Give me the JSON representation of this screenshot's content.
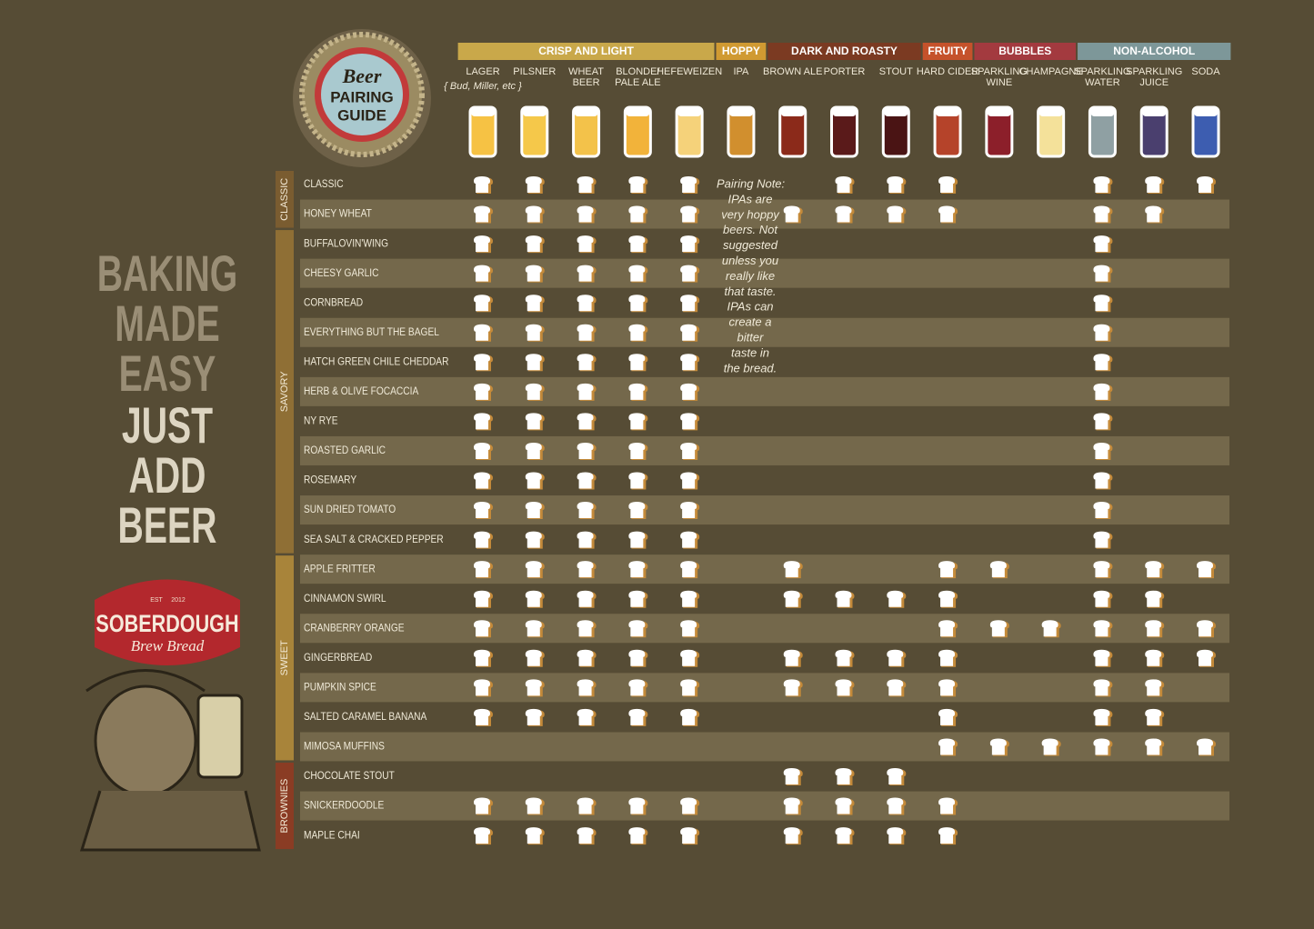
{
  "badge": {
    "top": "Beer",
    "middle": "PAIRING",
    "bottom": "GUIDE"
  },
  "slogan": [
    "BAKING",
    "MADE",
    "EASY",
    "JUST",
    "ADD",
    "BEER"
  ],
  "logo": {
    "est": "EST",
    "year": "2012",
    "name": "SOBERDOUGH",
    "tagline": "Brew Bread"
  },
  "pairing_note": {
    "title": "Pairing Note:",
    "lines": [
      "IPAs are",
      "very hoppy",
      "beers. Not",
      "suggested",
      "unless you",
      "really like",
      "that taste.",
      "IPAs can",
      "create a",
      "bitter",
      "taste in",
      "the bread."
    ]
  },
  "groups": [
    {
      "label": "CRISP AND LIGHT",
      "color": "#c9a84a",
      "columns": [
        {
          "label": [
            "LAGER"
          ],
          "sub": "{ Bud, Miller, etc }",
          "glass": "#f6c244"
        },
        {
          "label": [
            "PILSNER"
          ],
          "glass": "#f5c84a"
        },
        {
          "label": [
            "WHEAT",
            "BEER"
          ],
          "glass": "#f3c24a"
        },
        {
          "label": [
            "BLONDE/",
            "PALE ALE"
          ],
          "glass": "#f2b33a"
        },
        {
          "label": [
            "HEFEWEIZEN"
          ],
          "glass": "#f5d27a"
        }
      ]
    },
    {
      "label": "HOPPY",
      "color": "#d09a32",
      "columns": [
        {
          "label": [
            "IPA"
          ],
          "glass": "#d18f2e"
        }
      ]
    },
    {
      "label": "DARK AND ROASTY",
      "color": "#7b3a22",
      "columns": [
        {
          "label": [
            "BROWN ALE"
          ],
          "glass": "#8b2a1a"
        },
        {
          "label": [
            "PORTER"
          ],
          "glass": "#5a1a1a"
        },
        {
          "label": [
            "STOUT"
          ],
          "glass": "#4a1414"
        }
      ]
    },
    {
      "label": "FRUITY",
      "color": "#c5522b",
      "columns": [
        {
          "label": [
            "HARD CIDER"
          ],
          "glass": "#b5432a"
        }
      ]
    },
    {
      "label": "BUBBLES",
      "color": "#a33a3f",
      "columns": [
        {
          "label": [
            "SPARKLING",
            "WINE"
          ],
          "glass": "#8c1f2a"
        },
        {
          "label": [
            "CHAMPAGNE"
          ],
          "glass": "#f4e19a"
        }
      ]
    },
    {
      "label": "NON-ALCOHOL",
      "color": "#7d9799",
      "columns": [
        {
          "label": [
            "SPARKLING",
            "WATER"
          ],
          "glass": "#8fa0a3"
        },
        {
          "label": [
            "SPARKLING",
            "JUICE"
          ],
          "glass": "#4a3f6e"
        },
        {
          "label": [
            "SODA"
          ],
          "glass": "#3d5db0"
        }
      ]
    }
  ],
  "sections": [
    {
      "label": "CLASSIC",
      "color": "#7a5c30",
      "rows": [
        {
          "label": "CLASSIC",
          "pairs": [
            true,
            true,
            true,
            true,
            true,
            false,
            false,
            true,
            true,
            true,
            false,
            false,
            true,
            true,
            true
          ]
        },
        {
          "label": "HONEY WHEAT",
          "pairs": [
            true,
            true,
            true,
            true,
            true,
            false,
            true,
            true,
            true,
            true,
            false,
            false,
            true,
            true,
            false
          ]
        }
      ]
    },
    {
      "label": "SAVORY",
      "color": "#8f6f35",
      "rows": [
        {
          "label": "BUFFALOVIN'WING",
          "pairs": [
            true,
            true,
            true,
            true,
            true,
            false,
            false,
            false,
            false,
            false,
            false,
            false,
            true,
            false,
            false
          ]
        },
        {
          "label": "CHEESY GARLIC",
          "pairs": [
            true,
            true,
            true,
            true,
            true,
            false,
            false,
            false,
            false,
            false,
            false,
            false,
            true,
            false,
            false
          ]
        },
        {
          "label": "CORNBREAD",
          "pairs": [
            true,
            true,
            true,
            true,
            true,
            false,
            false,
            false,
            false,
            false,
            false,
            false,
            true,
            false,
            false
          ]
        },
        {
          "label": "EVERYTHING BUT THE BAGEL",
          "pairs": [
            true,
            true,
            true,
            true,
            true,
            false,
            false,
            false,
            false,
            false,
            false,
            false,
            true,
            false,
            false
          ]
        },
        {
          "label": "HATCH GREEN CHILE CHEDDAR",
          "pairs": [
            true,
            true,
            true,
            true,
            true,
            false,
            false,
            false,
            false,
            false,
            false,
            false,
            true,
            false,
            false
          ]
        },
        {
          "label": "HERB & OLIVE FOCACCIA",
          "pairs": [
            true,
            true,
            true,
            true,
            true,
            false,
            false,
            false,
            false,
            false,
            false,
            false,
            true,
            false,
            false
          ]
        },
        {
          "label": "NY RYE",
          "pairs": [
            true,
            true,
            true,
            true,
            true,
            false,
            false,
            false,
            false,
            false,
            false,
            false,
            true,
            false,
            false
          ]
        },
        {
          "label": "ROASTED GARLIC",
          "pairs": [
            true,
            true,
            true,
            true,
            true,
            false,
            false,
            false,
            false,
            false,
            false,
            false,
            true,
            false,
            false
          ]
        },
        {
          "label": "ROSEMARY",
          "pairs": [
            true,
            true,
            true,
            true,
            true,
            false,
            false,
            false,
            false,
            false,
            false,
            false,
            true,
            false,
            false
          ]
        },
        {
          "label": "SUN DRIED TOMATO",
          "pairs": [
            true,
            true,
            true,
            true,
            true,
            false,
            false,
            false,
            false,
            false,
            false,
            false,
            true,
            false,
            false
          ]
        },
        {
          "label": "SEA SALT & CRACKED PEPPER",
          "pairs": [
            true,
            true,
            true,
            true,
            true,
            false,
            false,
            false,
            false,
            false,
            false,
            false,
            true,
            false,
            false
          ]
        }
      ]
    },
    {
      "label": "SWEET",
      "color": "#a8843a",
      "rows": [
        {
          "label": "APPLE FRITTER",
          "pairs": [
            true,
            true,
            true,
            true,
            true,
            false,
            true,
            false,
            false,
            true,
            true,
            false,
            true,
            true,
            true
          ]
        },
        {
          "label": "CINNAMON SWIRL",
          "pairs": [
            true,
            true,
            true,
            true,
            true,
            false,
            true,
            true,
            true,
            true,
            false,
            false,
            true,
            true,
            false
          ]
        },
        {
          "label": "CRANBERRY ORANGE",
          "pairs": [
            true,
            true,
            true,
            true,
            true,
            false,
            false,
            false,
            false,
            true,
            true,
            true,
            true,
            true,
            true
          ]
        },
        {
          "label": "GINGERBREAD",
          "pairs": [
            true,
            true,
            true,
            true,
            true,
            false,
            true,
            true,
            true,
            true,
            false,
            false,
            true,
            true,
            true
          ]
        },
        {
          "label": "PUMPKIN SPICE",
          "pairs": [
            true,
            true,
            true,
            true,
            true,
            false,
            true,
            true,
            true,
            true,
            false,
            false,
            true,
            true,
            false
          ]
        },
        {
          "label": "SALTED CARAMEL BANANA",
          "pairs": [
            true,
            true,
            true,
            true,
            true,
            false,
            false,
            false,
            false,
            true,
            false,
            false,
            true,
            true,
            false
          ]
        },
        {
          "label": "MIMOSA MUFFINS",
          "pairs": [
            false,
            false,
            false,
            false,
            false,
            false,
            false,
            false,
            false,
            true,
            true,
            true,
            true,
            true,
            true
          ]
        }
      ]
    },
    {
      "label": "BROWNIES",
      "color": "#8a3c24",
      "rows": [
        {
          "label": "CHOCOLATE STOUT",
          "pairs": [
            false,
            false,
            false,
            false,
            false,
            false,
            true,
            true,
            true,
            false,
            false,
            false,
            false,
            false,
            false
          ]
        },
        {
          "label": "SNICKERDOODLE",
          "pairs": [
            true,
            true,
            true,
            true,
            true,
            false,
            true,
            true,
            true,
            true,
            false,
            false,
            false,
            false,
            false
          ]
        },
        {
          "label": "MAPLE CHAI",
          "pairs": [
            true,
            true,
            true,
            true,
            true,
            false,
            true,
            true,
            true,
            true,
            false,
            false,
            false,
            false,
            false
          ]
        }
      ]
    }
  ]
}
